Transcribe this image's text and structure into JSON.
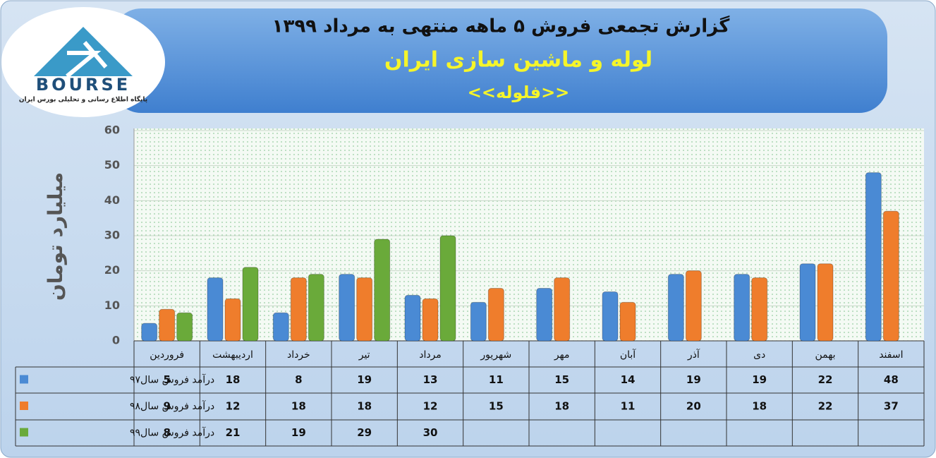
{
  "logo": {
    "name": "BOURSE",
    "tagline": "پایگاه اطلاع رسانی و تحلیلی بورس ایران"
  },
  "chart_data": {
    "type": "bar",
    "title": "گزارش تجمعی فروش  ۵ ماهه منتهی به مرداد ۱۳۹۹",
    "subtitle": "لوله و ماشین سازی ایران",
    "symbol": "<<فلوله>>",
    "y_label": "میلیارد تومان",
    "categories": [
      "فروردین",
      "اردیبهشت",
      "خرداد",
      "تیر",
      "مرداد",
      "شهریور",
      "مهر",
      "آبان",
      "آذر",
      "دی",
      "بهمن",
      "اسفند"
    ],
    "series": [
      {
        "name": "درآمد فروش سال۹۷",
        "color": "#4a8ad4",
        "values": [
          5,
          18,
          8,
          19,
          13,
          11,
          15,
          14,
          19,
          19,
          22,
          48
        ]
      },
      {
        "name": "درآمد فروش سال۹۸",
        "color": "#ef7d2c",
        "values": [
          9,
          12,
          18,
          18,
          12,
          15,
          18,
          11,
          20,
          18,
          22,
          37
        ]
      },
      {
        "name": "درآمد فروش سال۹۹",
        "color": "#6aaa3a",
        "values": [
          8,
          21,
          19,
          29,
          30,
          null,
          null,
          null,
          null,
          null,
          null,
          null
        ]
      }
    ],
    "ylim": [
      0,
      60
    ],
    "yticks": [
      0,
      10,
      20,
      30,
      40,
      50,
      60
    ],
    "grid": true
  }
}
